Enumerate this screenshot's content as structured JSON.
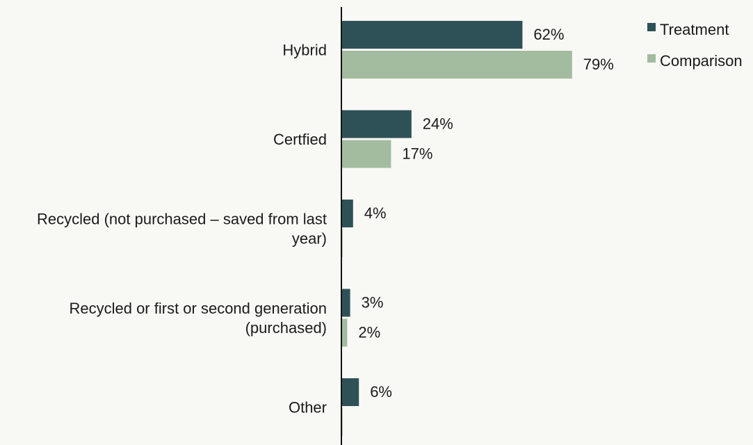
{
  "chart_data": {
    "type": "bar",
    "orientation": "horizontal",
    "categories": [
      "Hybrid",
      "Certfied",
      "Recycled (not purchased – saved from last year)",
      "Recycled or first or second generation (purchased)",
      "Other"
    ],
    "category_lines": [
      [
        "Hybrid"
      ],
      [
        "Certfied"
      ],
      [
        "Recycled (not purchased – saved from last",
        "year)"
      ],
      [
        "Recycled or first or second generation",
        "(purchased)"
      ],
      [
        "Other"
      ]
    ],
    "series": [
      {
        "name": "Treatment",
        "color": "#2e5157",
        "values": [
          62,
          24,
          4,
          3,
          6
        ],
        "labels": [
          "62%",
          "24%",
          "4%",
          "3%",
          "6%"
        ]
      },
      {
        "name": "Comparison",
        "color": "#a3bb9f",
        "values": [
          79,
          17,
          0.4,
          2,
          0.4
        ],
        "labels": [
          "79%",
          "17%",
          "",
          "2%",
          ""
        ]
      }
    ],
    "xlim": [
      0,
      100
    ],
    "grid": false,
    "legend_position": "top-right"
  }
}
